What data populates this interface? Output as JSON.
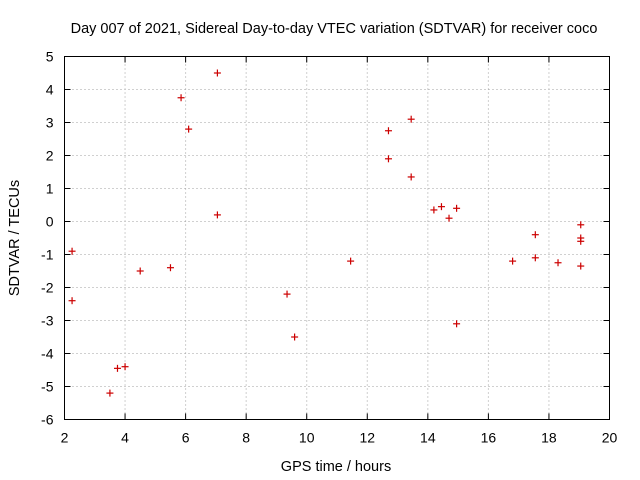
{
  "chart_data": {
    "type": "scatter",
    "title": "Day 007 of 2021, Sidereal Day-to-day VTEC variation (SDTVAR) for receiver coco",
    "xlabel": "GPS time / hours",
    "ylabel": "SDTVAR / TECUs",
    "xlim": [
      2,
      20
    ],
    "ylim": [
      -6,
      5
    ],
    "xticks": [
      2,
      4,
      6,
      8,
      10,
      12,
      14,
      16,
      18,
      20
    ],
    "yticks": [
      -6,
      -5,
      -4,
      -3,
      -2,
      -1,
      0,
      1,
      2,
      3,
      4,
      5
    ],
    "grid": true,
    "marker": "+",
    "color": "#cc0000",
    "series": [
      {
        "name": "SDTVAR",
        "points": [
          [
            2.25,
            -0.9
          ],
          [
            2.25,
            -2.4
          ],
          [
            3.5,
            -5.2
          ],
          [
            3.75,
            -4.45
          ],
          [
            4.0,
            -4.4
          ],
          [
            4.5,
            -1.5
          ],
          [
            5.5,
            -1.4
          ],
          [
            5.85,
            3.75
          ],
          [
            6.1,
            2.8
          ],
          [
            7.05,
            4.5
          ],
          [
            7.05,
            0.2
          ],
          [
            9.35,
            -2.2
          ],
          [
            9.6,
            -3.5
          ],
          [
            11.45,
            -1.2
          ],
          [
            12.7,
            2.75
          ],
          [
            12.7,
            1.9
          ],
          [
            13.45,
            3.1
          ],
          [
            13.45,
            1.35
          ],
          [
            14.2,
            0.35
          ],
          [
            14.45,
            0.45
          ],
          [
            14.7,
            0.1
          ],
          [
            14.95,
            0.4
          ],
          [
            14.95,
            -3.1
          ],
          [
            16.8,
            -1.2
          ],
          [
            17.55,
            -0.4
          ],
          [
            17.55,
            -1.1
          ],
          [
            18.3,
            -1.25
          ],
          [
            19.05,
            -0.1
          ],
          [
            19.05,
            -0.5
          ],
          [
            19.05,
            -0.6
          ],
          [
            19.05,
            -1.35
          ]
        ]
      }
    ]
  }
}
